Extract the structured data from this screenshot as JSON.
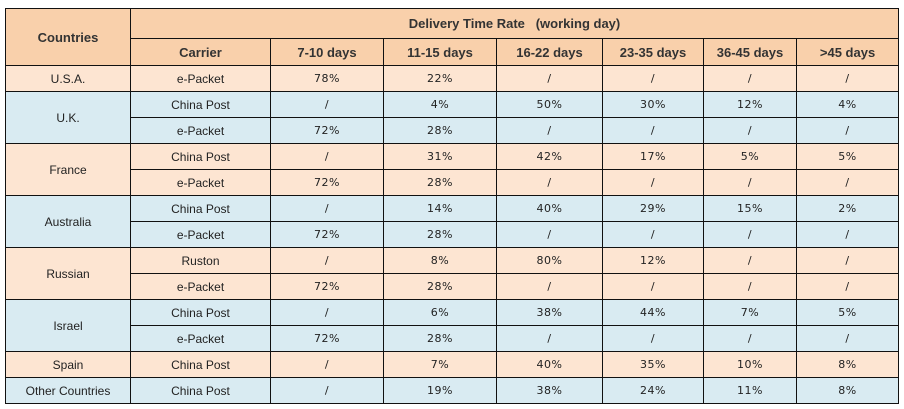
{
  "header": {
    "countries": "Countries",
    "group_title": "Delivery Time Rate   (working day)",
    "columns": [
      "Carrier",
      "7-10 days",
      "11-15 days",
      "16-22 days",
      "23-35 days",
      "36-45 days",
      ">45 days"
    ]
  },
  "colors": {
    "header": "#f9d0ab",
    "peach": "#fde5d2",
    "blue": "#d9ebf2"
  },
  "groups": [
    {
      "country": "U.S.A.",
      "shade": "peach",
      "rows": [
        {
          "carrier": "e-Packet",
          "values": [
            "78%",
            "22%",
            "/",
            "/",
            "/",
            "/"
          ]
        }
      ]
    },
    {
      "country": "U.K.",
      "shade": "blue",
      "rows": [
        {
          "carrier": "China Post",
          "values": [
            "/",
            "4%",
            "50%",
            "30%",
            "12%",
            "4%"
          ]
        },
        {
          "carrier": "e-Packet",
          "values": [
            "72%",
            "28%",
            "/",
            "/",
            "/",
            "/"
          ]
        }
      ]
    },
    {
      "country": "France",
      "shade": "peach",
      "rows": [
        {
          "carrier": "China Post",
          "values": [
            "/",
            "31%",
            "42%",
            "17%",
            "5%",
            "5%"
          ]
        },
        {
          "carrier": "e-Packet",
          "values": [
            "72%",
            "28%",
            "/",
            "/",
            "/",
            "/"
          ]
        }
      ]
    },
    {
      "country": "Australia",
      "shade": "blue",
      "rows": [
        {
          "carrier": "China Post",
          "values": [
            "/",
            "14%",
            "40%",
            "29%",
            "15%",
            "2%"
          ]
        },
        {
          "carrier": "e-Packet",
          "values": [
            "72%",
            "28%",
            "/",
            "/",
            "/",
            "/"
          ]
        }
      ]
    },
    {
      "country": "Russian",
      "shade": "peach",
      "rows": [
        {
          "carrier": "Ruston",
          "values": [
            "/",
            "8%",
            "80%",
            "12%",
            "/",
            "/"
          ]
        },
        {
          "carrier": "e-Packet",
          "values": [
            "72%",
            "28%",
            "/",
            "/",
            "/",
            "/"
          ]
        }
      ]
    },
    {
      "country": "Israel",
      "shade": "blue",
      "rows": [
        {
          "carrier": "China Post",
          "values": [
            "/",
            "6%",
            "38%",
            "44%",
            "7%",
            "5%"
          ]
        },
        {
          "carrier": "e-Packet",
          "values": [
            "72%",
            "28%",
            "/",
            "/",
            "/",
            "/"
          ]
        }
      ]
    },
    {
      "country": "Spain",
      "shade": "peach",
      "rows": [
        {
          "carrier": "China Post",
          "values": [
            "/",
            "7%",
            "40%",
            "35%",
            "10%",
            "8%"
          ]
        }
      ]
    },
    {
      "country": "Other Countries",
      "shade": "blue",
      "rows": [
        {
          "carrier": "China Post",
          "values": [
            "/",
            "19%",
            "38%",
            "24%",
            "11%",
            "8%"
          ]
        }
      ]
    }
  ]
}
